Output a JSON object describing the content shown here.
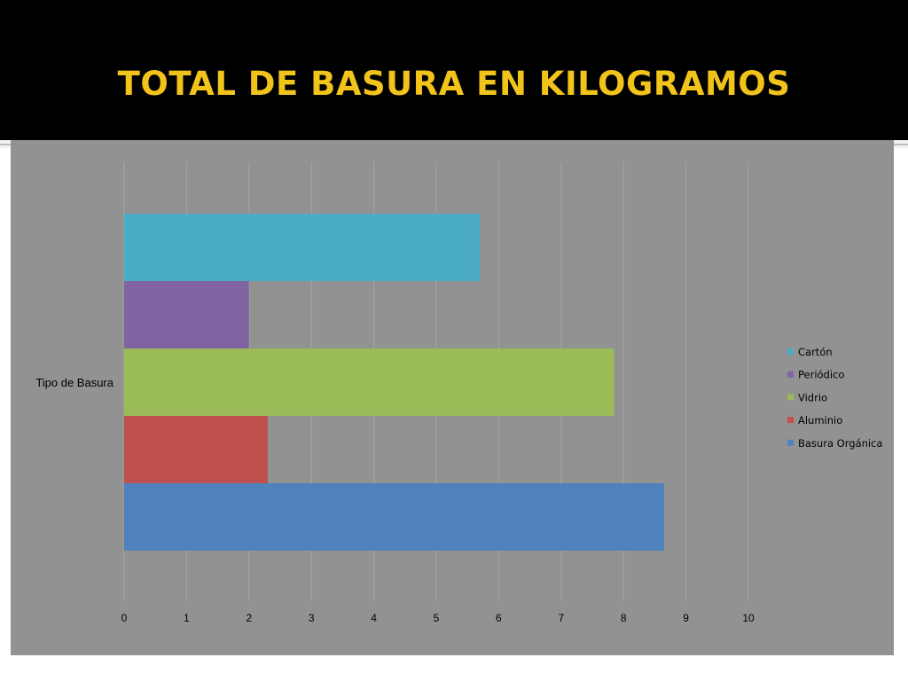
{
  "slide": {
    "title": "TOTAL DE BASURA EN KILOGRAMOS",
    "title_color": "#f2c31a",
    "band_color": "#000000",
    "plot_background": "#929292"
  },
  "chart_data": {
    "type": "bar",
    "orientation": "horizontal",
    "title": "",
    "xlabel": "",
    "ylabel": "",
    "categories": [
      "Tipo de Basura"
    ],
    "xlim": [
      0,
      10
    ],
    "xticks": [
      0,
      1,
      2,
      3,
      4,
      5,
      6,
      7,
      8,
      9,
      10
    ],
    "grid": true,
    "legend_position": "right",
    "series": [
      {
        "name": "Basura Orgánica",
        "values": [
          8.65
        ],
        "color": "#4f81bd"
      },
      {
        "name": "Aluminio",
        "values": [
          2.3
        ],
        "color": "#c0504d"
      },
      {
        "name": "Vidrio",
        "values": [
          7.85
        ],
        "color": "#9bbb59"
      },
      {
        "name": "Periódico",
        "values": [
          2.0
        ],
        "color": "#8064a2"
      },
      {
        "name": "Cartón",
        "values": [
          5.7
        ],
        "color": "#4bacc6"
      }
    ]
  }
}
